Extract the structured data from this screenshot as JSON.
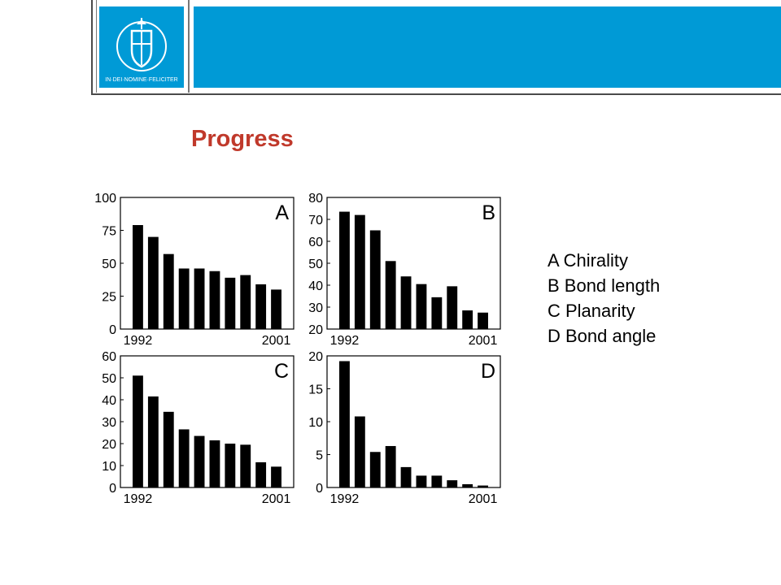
{
  "slide": {
    "title": "Progress",
    "logo_text": "IN·DEI·NOMINE·FELICITER",
    "header_color": "#009ad6",
    "title_color": "#c0392b"
  },
  "legend": [
    {
      "letter": "A",
      "label": "A Chirality"
    },
    {
      "letter": "B",
      "label": "B Bond length"
    },
    {
      "letter": "C",
      "label": "C Planarity"
    },
    {
      "letter": "D",
      "label": "D Bond angle"
    }
  ],
  "chart_data": [
    {
      "type": "bar",
      "panel": "A",
      "x_tick_labels": [
        "1992",
        "2001"
      ],
      "yticks": [
        0,
        25,
        50,
        75,
        100
      ],
      "ylim": [
        0,
        100
      ],
      "values": [
        79,
        70,
        57,
        46,
        46,
        44,
        39,
        41,
        34,
        30
      ],
      "bar_color": "#000000"
    },
    {
      "type": "bar",
      "panel": "B",
      "x_tick_labels": [
        "1992",
        "2001"
      ],
      "yticks": [
        20,
        30,
        40,
        50,
        60,
        70,
        80
      ],
      "ylim": [
        20,
        80
      ],
      "values": [
        73.5,
        72,
        65,
        51,
        44,
        40.5,
        34.5,
        39.5,
        28.5,
        27.5
      ],
      "bar_color": "#000000"
    },
    {
      "type": "bar",
      "panel": "C",
      "x_tick_labels": [
        "1992",
        "2001"
      ],
      "yticks": [
        0,
        10,
        20,
        30,
        40,
        50,
        60
      ],
      "ylim": [
        0,
        60
      ],
      "values": [
        51,
        41.5,
        34.5,
        26.5,
        23.5,
        21.5,
        20,
        19.5,
        11.5,
        9.5
      ],
      "bar_color": "#000000"
    },
    {
      "type": "bar",
      "panel": "D",
      "x_tick_labels": [
        "1992",
        "2001"
      ],
      "yticks": [
        0,
        5,
        10,
        15,
        20
      ],
      "ylim": [
        0,
        20
      ],
      "values": [
        19.2,
        10.8,
        5.4,
        6.3,
        3.1,
        1.8,
        1.8,
        1.1,
        0.5,
        0.3
      ],
      "bar_color": "#000000"
    }
  ]
}
